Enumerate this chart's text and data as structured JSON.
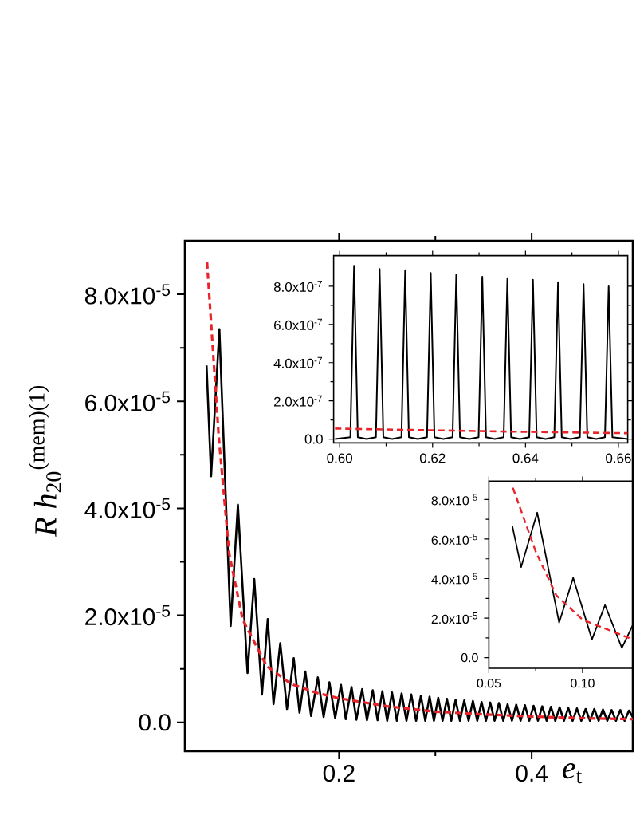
{
  "chart_data": [
    {
      "type": "line",
      "xlabel": "*e*$_{t}$",
      "ylabel": "*R h*$_{20}$$^{(mem)(1)}$",
      "xlim": [
        0.04,
        0.505
      ],
      "ylim": [
        -5.4e-06,
        9e-05
      ],
      "xticks": [
        0.2,
        0.4
      ],
      "yticks": [
        {
          "value": 0,
          "label": "0.0"
        },
        {
          "value": 2e-05,
          "label": "2.0x10$^{-5}$"
        },
        {
          "value": 4e-05,
          "label": "4.0x10$^{-5}$"
        },
        {
          "value": 6e-05,
          "label": "6.0x10$^{-5}$"
        },
        {
          "value": 8e-05,
          "label": "8.0x10$^{-5}$"
        }
      ],
      "series": [
        {
          "color": "#000000",
          "line_style": "solid",
          "x": [
            0.0625,
            0.0672,
            0.0758,
            0.0875,
            0.095,
            0.105,
            0.112,
            0.12,
            0.126,
            0.132,
            0.139,
            0.146,
            0.153,
            0.159,
            0.165,
            0.171,
            0.178,
            0.184,
            0.19,
            0.196,
            0.202,
            0.207,
            0.213,
            0.218,
            0.224,
            0.229,
            0.235,
            0.24,
            0.245,
            0.25,
            0.255,
            0.26,
            0.265,
            0.27,
            0.275,
            0.28,
            0.285,
            0.2895,
            0.294,
            0.2985,
            0.303,
            0.3075,
            0.312,
            0.3165,
            0.321,
            0.3255,
            0.33,
            0.3345,
            0.339,
            0.3435,
            0.348,
            0.3525,
            0.357,
            0.3615,
            0.366,
            0.3705,
            0.375,
            0.3795,
            0.384,
            0.3885,
            0.393,
            0.3975,
            0.402,
            0.4065,
            0.411,
            0.4155,
            0.42,
            0.4245,
            0.429,
            0.4335,
            0.438,
            0.4425,
            0.447,
            0.4515,
            0.456,
            0.4605,
            0.465,
            0.4695,
            0.474,
            0.4785,
            0.483,
            0.4875,
            0.492,
            0.4965,
            0.501,
            0.505
          ],
          "values": [
            6.67e-05,
            4.6e-05,
            7.35e-05,
            1.8e-05,
            4.07e-05,
            9.2e-06,
            2.68e-05,
            5.2e-06,
            1.93e-05,
            3.4e-06,
            1.48e-05,
            2.5e-06,
            1.2e-05,
            1.8e-06,
            9.5e-06,
            1.2e-06,
            8.4e-06,
            1e-06,
            7.5e-06,
            8e-07,
            7e-06,
            6e-07,
            6.6e-06,
            5e-07,
            6.2e-06,
            4e-07,
            6e-06,
            4e-07,
            5.8e-06,
            3e-07,
            5.6e-06,
            3e-07,
            5.4e-06,
            3e-07,
            5.2e-06,
            3e-07,
            5e-06,
            3e-07,
            4.8e-06,
            3e-07,
            4.6e-06,
            3e-07,
            4.4e-06,
            3e-07,
            4.2e-06,
            3e-07,
            4.1e-06,
            3e-07,
            4e-06,
            3e-07,
            3.8e-06,
            3e-07,
            3.7e-06,
            3e-07,
            3.6e-06,
            3e-07,
            3.4e-06,
            3e-07,
            3.3e-06,
            3e-07,
            3.2e-06,
            3e-07,
            3.1e-06,
            3e-07,
            3e-06,
            3e-07,
            2.9e-06,
            3e-07,
            2.8e-06,
            3e-07,
            2.7e-06,
            3e-07,
            2.6e-06,
            3e-07,
            2.5e-06,
            3e-07,
            2.5e-06,
            3e-07,
            2.4e-06,
            3e-07,
            2.3e-06,
            3e-07,
            2.3e-06,
            3e-07,
            2.2e-06,
            1e-06
          ]
        },
        {
          "color": "#e8242a",
          "line_style": "dashed",
          "x": [
            0.063,
            0.075,
            0.086,
            0.1,
            0.125,
            0.15,
            0.177,
            0.2,
            0.25,
            0.3,
            0.35,
            0.4,
            0.45,
            0.505
          ],
          "values": [
            8.6e-05,
            5.37e-05,
            3.15e-05,
            1.92e-05,
            1.05e-05,
            7.2e-06,
            5.5e-06,
            4.5e-06,
            3e-06,
            2e-06,
            1.5e-06,
            1.1e-06,
            8e-07,
            6e-07
          ]
        }
      ]
    },
    {
      "type": "line",
      "xlim": [
        0.5987,
        0.662
      ],
      "ylim": [
        -2e-08,
        9.6e-07
      ],
      "xticks": [
        {
          "value": 0.6,
          "label": "0.60"
        },
        {
          "value": 0.62,
          "label": "0.62"
        },
        {
          "value": 0.64,
          "label": "0.64"
        },
        {
          "value": 0.66,
          "label": "0.66"
        }
      ],
      "yticks": [
        {
          "value": 0,
          "label": "0.0"
        },
        {
          "value": 2e-07,
          "label": "2.0x10$^{-7}$"
        },
        {
          "value": 4e-07,
          "label": "4.0x10$^{-7}$"
        },
        {
          "value": 6e-07,
          "label": "6.0x10$^{-7}$"
        },
        {
          "value": 8e-07,
          "label": "8.0x10$^{-7}$"
        }
      ],
      "series": [
        {
          "color": "#000000",
          "line_style": "solid",
          "x": [
            0.599,
            0.6023,
            0.6031,
            0.6039,
            0.6058,
            0.6078,
            0.6086,
            0.6094,
            0.6113,
            0.6133,
            0.6141,
            0.6149,
            0.6168,
            0.6188,
            0.6196,
            0.6204,
            0.6223,
            0.6243,
            0.6251,
            0.6259,
            0.6279,
            0.6299,
            0.6307,
            0.6315,
            0.6334,
            0.6353,
            0.6361,
            0.6369,
            0.6388,
            0.6408,
            0.6416,
            0.6424,
            0.6443,
            0.6462,
            0.647,
            0.6478,
            0.6497,
            0.6517,
            0.6525,
            0.6533,
            0.6552,
            0.6571,
            0.6579,
            0.6587,
            0.662
          ],
          "values": [
            0,
            1e-08,
            9.07e-07,
            1e-08,
            0,
            1e-08,
            8.9e-07,
            1e-08,
            0,
            1e-08,
            8.84e-07,
            1e-08,
            0,
            1e-08,
            8.7e-07,
            1e-08,
            0,
            1e-08,
            8.62e-07,
            1e-08,
            0,
            1e-08,
            8.5e-07,
            1e-08,
            0,
            1e-08,
            8.42e-07,
            1e-08,
            0,
            1e-08,
            8.34e-07,
            1e-08,
            0,
            1e-08,
            8.22e-07,
            1e-08,
            0,
            1e-08,
            8.11e-07,
            1e-08,
            0,
            1e-08,
            8e-07,
            1e-08,
            0
          ]
        },
        {
          "color": "#e8242a",
          "line_style": "dashed",
          "x": [
            0.599,
            0.62,
            0.64,
            0.662
          ],
          "values": [
            5.5e-08,
            4.6e-08,
            3.8e-08,
            3.1e-08
          ]
        }
      ]
    },
    {
      "type": "line",
      "xlim": [
        0.05,
        0.127
      ],
      "ylim": [
        -5.4e-06,
        8.93e-05
      ],
      "xticks": [
        {
          "value": 0.05,
          "label": "0.05"
        },
        {
          "value": 0.1,
          "label": "0.10"
        }
      ],
      "yticks": [
        {
          "value": 0,
          "label": "0.0"
        },
        {
          "value": 2e-05,
          "label": "2.0x10$^{-5}$"
        },
        {
          "value": 4e-05,
          "label": "4.0x10$^{-5}$"
        },
        {
          "value": 6e-05,
          "label": "6.0x10$^{-5}$"
        },
        {
          "value": 8e-05,
          "label": "8.0x10$^{-5}$"
        }
      ],
      "series": [
        {
          "color": "#000000",
          "line_style": "solid",
          "x": [
            0.0625,
            0.0672,
            0.0758,
            0.0875,
            0.095,
            0.105,
            0.112,
            0.121,
            0.127
          ],
          "values": [
            6.67e-05,
            4.58e-05,
            7.34e-05,
            1.77e-05,
            4.04e-05,
            9.2e-06,
            2.66e-05,
            4.9e-06,
            1.68e-05
          ]
        },
        {
          "color": "#e8242a",
          "line_style": "dashed",
          "x": [
            0.0628,
            0.075,
            0.086,
            0.1,
            0.125
          ],
          "values": [
            8.6e-05,
            5.37e-05,
            3.15e-05,
            1.92e-05,
            9.9e-06
          ]
        }
      ]
    }
  ]
}
